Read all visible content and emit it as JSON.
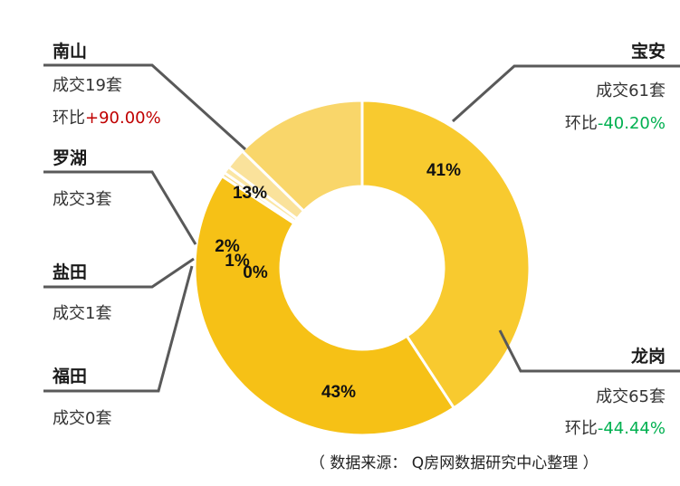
{
  "chart_data": {
    "type": "pie",
    "donut": true,
    "title": "",
    "slices": [
      {
        "region": "宝安",
        "percent_label": "41%",
        "deals": "成交61套",
        "mom_prefix": "环比",
        "mom_value": "-40.20%",
        "mom_color": "#00b050",
        "color": "#f8ca2f",
        "value": 61
      },
      {
        "region": "龙岗",
        "percent_label": "43%",
        "deals": "成交65套",
        "mom_prefix": "环比",
        "mom_value": "-44.44%",
        "mom_color": "#00b050",
        "color": "#f6c116",
        "value": 65
      },
      {
        "region": "福田",
        "percent_label": "0%",
        "deals": "成交0套",
        "color": "#f9dc8a",
        "value": 0
      },
      {
        "region": "盐田",
        "percent_label": "1%",
        "deals": "成交1套",
        "color": "#fbe6a4",
        "value": 1
      },
      {
        "region": "罗湖",
        "percent_label": "2%",
        "deals": "成交3套",
        "color": "#fae29b",
        "value": 3
      },
      {
        "region": "南山",
        "percent_label": "13%",
        "deals": "成交19套",
        "mom_prefix": "环比",
        "mom_value": "+90.00%",
        "mom_color": "#c00000",
        "color": "#f9d66a",
        "value": 19
      }
    ]
  },
  "source": "（ 数据来源： Q房网数据研究中心整理 ）"
}
